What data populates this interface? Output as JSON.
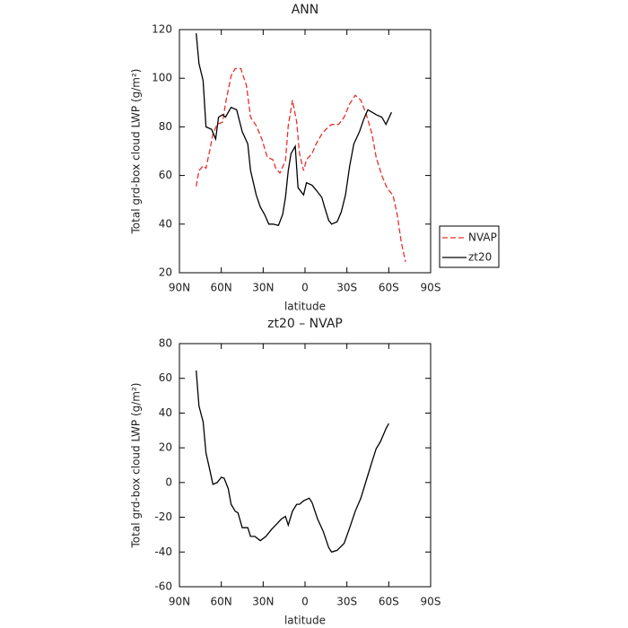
{
  "chart_data": [
    {
      "type": "line",
      "title": "ANN",
      "xlabel": "latitude",
      "ylabel": "Total grd-box cloud LWP (g/m²)",
      "xlim": [
        90,
        -90
      ],
      "xticks": [
        {
          "value": 90,
          "label": "90N"
        },
        {
          "value": 60,
          "label": "60N"
        },
        {
          "value": 30,
          "label": "30N"
        },
        0,
        {
          "value": -30,
          "label": "30S"
        },
        {
          "value": -60,
          "label": "60S"
        },
        {
          "value": -90,
          "label": "90S"
        }
      ],
      "ylim": [
        20,
        120
      ],
      "yticks": [
        20,
        40,
        60,
        80,
        100,
        120
      ],
      "legend": "right",
      "series": [
        {
          "name": "NVAP",
          "color": "#e8302a",
          "linestyle": "dashed",
          "x": [
            78,
            76,
            73,
            71,
            68,
            66,
            63,
            59,
            57,
            53,
            50,
            46,
            42,
            39,
            35,
            31,
            27,
            23,
            21,
            18,
            14,
            12,
            9,
            6,
            4,
            1,
            -1,
            -5,
            -8,
            -12,
            -15,
            -19,
            -24,
            -28,
            -32,
            -36,
            -40,
            -44,
            -48,
            -51,
            -55,
            -59,
            -63,
            -66,
            -69,
            -72
          ],
          "values": [
            55.5,
            62,
            64,
            63,
            71,
            77,
            81,
            82,
            89.5,
            101,
            104,
            104,
            97,
            84,
            80.5,
            75,
            67.5,
            66.5,
            63,
            61,
            66,
            80.5,
            91,
            82,
            69,
            62,
            66.5,
            69,
            73,
            77,
            79,
            81,
            81,
            84,
            89.5,
            93,
            91,
            85,
            77,
            67.5,
            60,
            54.5,
            52,
            44,
            32.5,
            24.5
          ]
        },
        {
          "name": "zt20",
          "color": "#000000",
          "linestyle": "solid",
          "x": [
            78,
            76,
            73,
            71,
            67,
            64,
            62,
            59,
            57,
            53,
            49,
            45,
            41,
            39,
            35,
            32,
            29,
            26,
            23,
            19,
            16,
            14,
            12,
            10,
            7,
            5,
            1,
            -1,
            -5,
            -8,
            -12,
            -14,
            -17,
            -19,
            -23,
            -26,
            -29,
            -32,
            -35,
            -39,
            -42,
            -45,
            -48,
            -51,
            -55,
            -58,
            -62
          ],
          "values": [
            118.5,
            106,
            99,
            80,
            79,
            75,
            84,
            85,
            84,
            88,
            87,
            78,
            73,
            62,
            52,
            47,
            44,
            40,
            40,
            39.5,
            44,
            51,
            62,
            69,
            72,
            55,
            52,
            57,
            56,
            54,
            51,
            47,
            41.5,
            40,
            41,
            45,
            52,
            64,
            73,
            78,
            83,
            87,
            86,
            85,
            84,
            81,
            86
          ]
        }
      ]
    },
    {
      "type": "line",
      "title": "zt20 – NVAP",
      "xlabel": "latitude",
      "ylabel": "Total grd-box cloud LWP (g/m²)",
      "xlim": [
        90,
        -90
      ],
      "xticks": [
        {
          "value": 90,
          "label": "90N"
        },
        {
          "value": 60,
          "label": "60N"
        },
        {
          "value": 30,
          "label": "30N"
        },
        0,
        {
          "value": -30,
          "label": "30S"
        },
        {
          "value": -60,
          "label": "60S"
        },
        {
          "value": -90,
          "label": "90S"
        }
      ],
      "ylim": [
        -60,
        80
      ],
      "yticks": [
        -60,
        -40,
        -20,
        0,
        20,
        40,
        60,
        80
      ],
      "series": [
        {
          "color": "#000000",
          "linestyle": "solid",
          "x": [
            78,
            76,
            73,
            71,
            68,
            66,
            63,
            60,
            58,
            55,
            53,
            50,
            48,
            45,
            41,
            39,
            36,
            32,
            28,
            24,
            21,
            17,
            14,
            12,
            9,
            6,
            4,
            1,
            -3,
            -5,
            -9,
            -13,
            -17,
            -19,
            -23,
            -28,
            -32,
            -36,
            -40,
            -44,
            -48,
            -51,
            -54,
            -58,
            -60
          ],
          "values": [
            64.5,
            44,
            35,
            17,
            6.5,
            -1,
            0,
            3,
            2.5,
            -3.5,
            -12.5,
            -16.5,
            -17.5,
            -26,
            -26,
            -31,
            -31,
            -33.5,
            -31,
            -27,
            -24.5,
            -21,
            -19.5,
            -24.5,
            -16.5,
            -12.5,
            -12.5,
            -10.5,
            -9,
            -11.5,
            -21,
            -28,
            -37.5,
            -40,
            -39,
            -35,
            -26,
            -16.5,
            -9,
            1.5,
            12,
            19.5,
            23.5,
            31,
            34
          ]
        }
      ]
    }
  ]
}
